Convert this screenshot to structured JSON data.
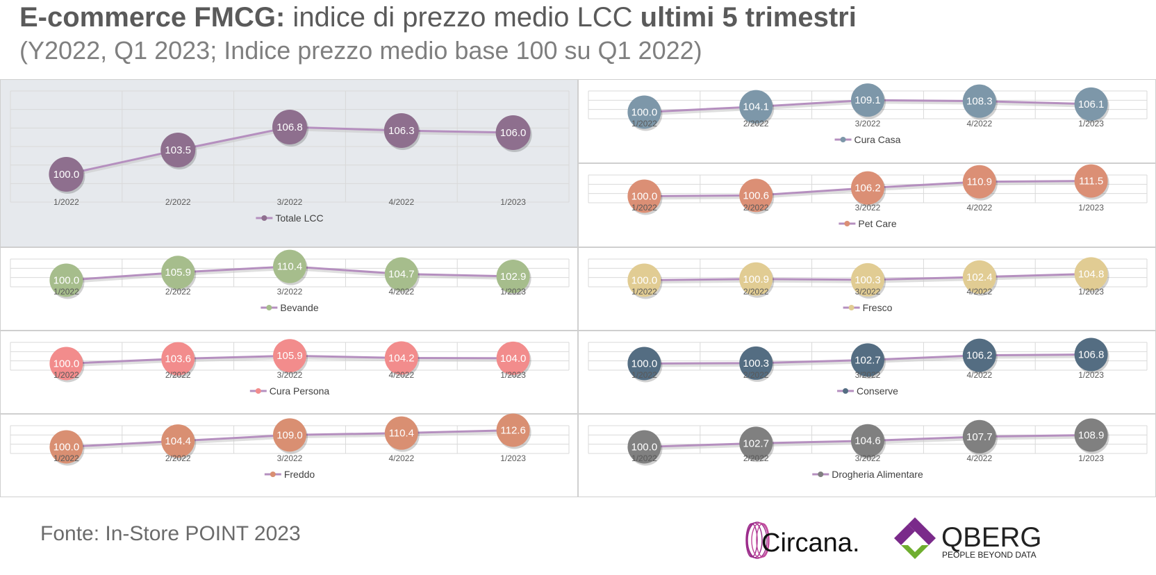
{
  "header": {
    "title_bold": "E-commerce FMCG:",
    "title_mid": " indice di prezzo medio LCC ",
    "title_bold2": "ultimi 5 trimestri",
    "subtitle": "(Y2022, Q1 2023; Indice prezzo medio base 100 su Q1 2022)"
  },
  "footer": {
    "source": "Fonte: In-Store POINT 2023",
    "logo1": "Circana.",
    "logo2": "QBERG",
    "logo2_tag": "PEOPLE BEYOND DATA"
  },
  "colors": {
    "line": "#b58fbf",
    "grid": "#d9d9d9",
    "highlight_panel": "#e6e9ed"
  },
  "chart_data": [
    {
      "type": "line",
      "categories": [
        "1/2022",
        "2/2022",
        "3/2022",
        "4/2022",
        "1/2023"
      ],
      "series": [
        {
          "name": "Totale LCC",
          "values": [
            100.0,
            103.5,
            106.8,
            106.3,
            106.0
          ],
          "color": "#8e6f8e"
        }
      ]
    },
    {
      "type": "line",
      "categories": [
        "1/2022",
        "2/2022",
        "3/2022",
        "4/2022",
        "1/2023"
      ],
      "series": [
        {
          "name": "Cura Casa",
          "values": [
            100.0,
            104.1,
            109.1,
            108.3,
            106.1
          ],
          "color": "#7d97a9"
        }
      ]
    },
    {
      "type": "line",
      "categories": [
        "1/2022",
        "2/2022",
        "3/2022",
        "4/2022",
        "1/2023"
      ],
      "series": [
        {
          "name": "Pet Care",
          "values": [
            100.0,
            100.6,
            106.2,
            110.9,
            111.5
          ],
          "color": "#db8f75"
        }
      ]
    },
    {
      "type": "line",
      "categories": [
        "1/2022",
        "2/2022",
        "3/2022",
        "4/2022",
        "1/2023"
      ],
      "series": [
        {
          "name": "Bevande",
          "values": [
            100.0,
            105.9,
            110.4,
            104.7,
            102.9
          ],
          "color": "#a6bd8c"
        }
      ]
    },
    {
      "type": "line",
      "categories": [
        "1/2022",
        "2/2022",
        "3/2022",
        "4/2022",
        "1/2023"
      ],
      "series": [
        {
          "name": "Fresco",
          "values": [
            100.0,
            100.9,
            100.3,
            102.4,
            104.8
          ],
          "color": "#e1cc93"
        }
      ]
    },
    {
      "type": "line",
      "categories": [
        "1/2022",
        "2/2022",
        "3/2022",
        "4/2022",
        "1/2023"
      ],
      "series": [
        {
          "name": "Cura Persona",
          "values": [
            100.0,
            103.6,
            105.9,
            104.2,
            104.0
          ],
          "color": "#f28c8c"
        }
      ]
    },
    {
      "type": "line",
      "categories": [
        "1/2022",
        "2/2022",
        "3/2022",
        "4/2022",
        "1/2023"
      ],
      "series": [
        {
          "name": "Conserve",
          "values": [
            100.0,
            100.3,
            102.7,
            106.2,
            106.8
          ],
          "color": "#546d82"
        }
      ]
    },
    {
      "type": "line",
      "categories": [
        "1/2022",
        "2/2022",
        "3/2022",
        "4/2022",
        "1/2023"
      ],
      "series": [
        {
          "name": "Freddo",
          "values": [
            100.0,
            104.4,
            109.0,
            110.4,
            112.6
          ],
          "color": "#d98f72"
        }
      ]
    },
    {
      "type": "line",
      "categories": [
        "1/2022",
        "2/2022",
        "3/2022",
        "4/2022",
        "1/2023"
      ],
      "series": [
        {
          "name": "Drogheria Alimentare",
          "values": [
            100.0,
            102.7,
            104.6,
            107.7,
            108.9
          ],
          "color": "#808080"
        }
      ]
    }
  ]
}
